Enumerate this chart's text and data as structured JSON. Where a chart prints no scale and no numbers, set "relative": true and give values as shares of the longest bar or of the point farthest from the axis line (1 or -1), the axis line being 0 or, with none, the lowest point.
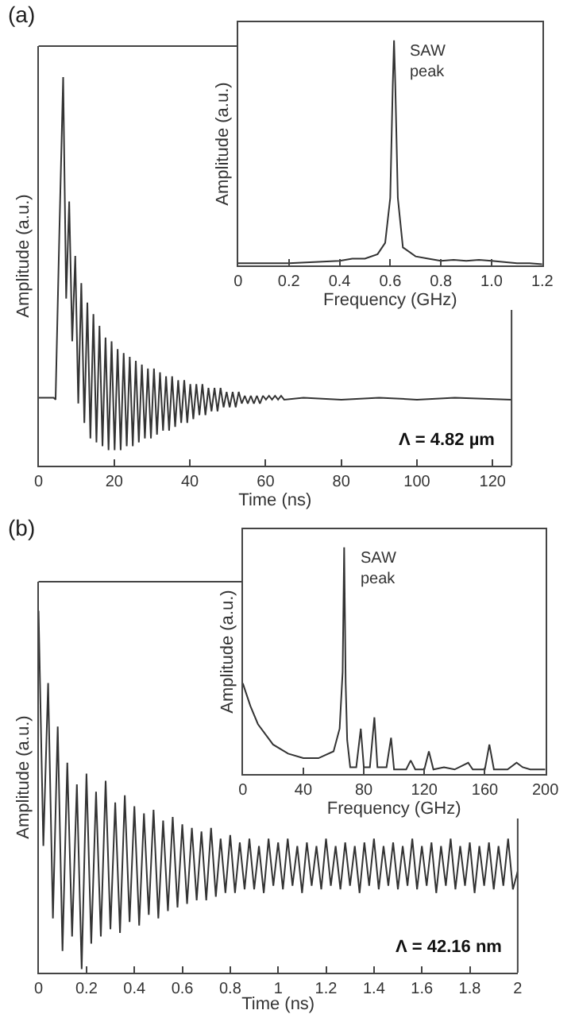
{
  "chart_data": [
    {
      "type": "line",
      "title": "(a)",
      "xlabel": "Time (ns)",
      "ylabel": "Amplitude (a.u.)",
      "relative": true,
      "xlim": [
        0,
        125
      ],
      "xticks": [
        0,
        20,
        40,
        60,
        80,
        100,
        120
      ],
      "marker": "none",
      "line_style": "solid",
      "annotations": [
        "Λ = 4.82 µm"
      ],
      "series": [
        {
          "color": "#333333",
          "x": [
            0,
            4,
            4.5,
            5.5,
            6.5,
            7.3,
            8.1,
            8.9,
            9.7,
            10.5,
            11.3,
            12.1,
            12.9,
            13.7,
            14.5,
            15.3,
            16.1,
            16.9,
            17.7,
            18.5,
            19.3,
            20.1,
            20.9,
            21.7,
            22.5,
            23.3,
            24.1,
            24.9,
            25.7,
            26.5,
            27.3,
            28.1,
            28.9,
            29.7,
            30.5,
            31.3,
            32.1,
            32.9,
            33.7,
            34.5,
            35.3,
            36.1,
            36.9,
            37.7,
            38.5,
            39.3,
            40.1,
            40.9,
            41.7,
            42.5,
            43.3,
            44.1,
            44.9,
            45.7,
            46.5,
            47.3,
            48.1,
            48.9,
            49.7,
            50.5,
            51.3,
            52.1,
            52.9,
            53.7,
            54.5,
            55.3,
            56.1,
            56.9,
            57.7,
            58.5,
            59.3,
            60.1,
            60.9,
            61.7,
            62.5,
            63.3,
            64.1,
            64.9,
            70,
            80,
            90,
            100,
            110,
            125
          ],
          "values": [
            0.175,
            0.175,
            0.17,
            0.6,
            1.0,
            0.43,
            0.68,
            0.32,
            0.54,
            0.16,
            0.47,
            0.11,
            0.42,
            0.07,
            0.39,
            0.06,
            0.36,
            0.05,
            0.33,
            0.04,
            0.32,
            0.04,
            0.3,
            0.04,
            0.29,
            0.05,
            0.28,
            0.05,
            0.27,
            0.06,
            0.26,
            0.07,
            0.25,
            0.07,
            0.25,
            0.08,
            0.24,
            0.09,
            0.23,
            0.09,
            0.23,
            0.1,
            0.22,
            0.11,
            0.22,
            0.11,
            0.21,
            0.12,
            0.21,
            0.13,
            0.21,
            0.13,
            0.2,
            0.14,
            0.2,
            0.14,
            0.2,
            0.15,
            0.19,
            0.15,
            0.19,
            0.15,
            0.19,
            0.16,
            0.18,
            0.16,
            0.18,
            0.16,
            0.18,
            0.16,
            0.18,
            0.17,
            0.18,
            0.17,
            0.18,
            0.17,
            0.18,
            0.17,
            0.175,
            0.17,
            0.175,
            0.17,
            0.175,
            0.17
          ]
        }
      ]
    },
    {
      "type": "line",
      "xlabel": "Frequency (GHz)",
      "ylabel": "Amplitude (a.u.)",
      "relative": true,
      "xlim": [
        0,
        1.2
      ],
      "xticks": [
        0,
        0.2,
        0.4,
        0.6,
        0.8,
        {
          "value": 1,
          "label": "1.0"
        },
        1.2
      ],
      "marker": "none",
      "line_style": "solid",
      "annotations": [
        {
          "text": "SAW\npeak",
          "x": 0.615,
          "y": 1.0
        }
      ],
      "series": [
        {
          "color": "#333333",
          "x": [
            0,
            0.1,
            0.2,
            0.3,
            0.4,
            0.45,
            0.5,
            0.55,
            0.58,
            0.6,
            0.61,
            0.615,
            0.62,
            0.63,
            0.65,
            0.7,
            0.75,
            0.8,
            0.85,
            0.9,
            0.95,
            1.0,
            1.05,
            1.1,
            1.15,
            1.2
          ],
          "values": [
            0.01,
            0.01,
            0.01,
            0.015,
            0.02,
            0.03,
            0.03,
            0.05,
            0.1,
            0.3,
            0.8,
            1.0,
            0.8,
            0.3,
            0.08,
            0.04,
            0.03,
            0.02,
            0.025,
            0.02,
            0.025,
            0.02,
            0.015,
            0.01,
            0.01,
            0.005
          ]
        }
      ]
    },
    {
      "type": "line",
      "title": "(b)",
      "xlabel": "Time (ns)",
      "ylabel": "Amplitude (a.u.)",
      "relative": true,
      "xlim": [
        0,
        2
      ],
      "xticks": [
        0,
        0.2,
        0.4,
        0.6,
        0.8,
        1,
        1.2,
        1.4,
        1.6,
        1.8,
        2
      ],
      "marker": "none",
      "line_style": "solid",
      "annotations": [
        "Λ = 42.16 nm"
      ],
      "series": [
        {
          "color": "#333333",
          "x": [
            0,
            0.02,
            0.04,
            0.06,
            0.08,
            0.1,
            0.12,
            0.14,
            0.16,
            0.18,
            0.2,
            0.22,
            0.24,
            0.26,
            0.28,
            0.3,
            0.32,
            0.34,
            0.36,
            0.38,
            0.4,
            0.42,
            0.44,
            0.46,
            0.48,
            0.5,
            0.52,
            0.54,
            0.56,
            0.58,
            0.6,
            0.62,
            0.64,
            0.66,
            0.68,
            0.7,
            0.72,
            0.74,
            0.76,
            0.78,
            0.8,
            0.82,
            0.84,
            0.86,
            0.88,
            0.9,
            0.92,
            0.94,
            0.96,
            0.98,
            1,
            1.02,
            1.04,
            1.06,
            1.08,
            1.1,
            1.12,
            1.14,
            1.16,
            1.18,
            1.2,
            1.22,
            1.24,
            1.26,
            1.28,
            1.3,
            1.32,
            1.34,
            1.36,
            1.38,
            1.4,
            1.42,
            1.44,
            1.46,
            1.48,
            1.5,
            1.52,
            1.54,
            1.56,
            1.58,
            1.6,
            1.62,
            1.64,
            1.66,
            1.68,
            1.7,
            1.72,
            1.74,
            1.76,
            1.78,
            1.8,
            1.82,
            1.84,
            1.86,
            1.88,
            1.9,
            1.92,
            1.94,
            1.96,
            1.98,
            2
          ],
          "values": [
            1.0,
            0.35,
            0.8,
            0.15,
            0.68,
            0.06,
            0.58,
            0.1,
            0.52,
            0.01,
            0.55,
            0.08,
            0.5,
            0.1,
            0.53,
            0.12,
            0.47,
            0.11,
            0.49,
            0.14,
            0.46,
            0.13,
            0.44,
            0.16,
            0.45,
            0.15,
            0.42,
            0.17,
            0.43,
            0.18,
            0.41,
            0.19,
            0.4,
            0.2,
            0.39,
            0.2,
            0.4,
            0.21,
            0.37,
            0.22,
            0.38,
            0.22,
            0.36,
            0.23,
            0.37,
            0.23,
            0.35,
            0.22,
            0.37,
            0.24,
            0.36,
            0.23,
            0.37,
            0.24,
            0.35,
            0.22,
            0.36,
            0.24,
            0.35,
            0.23,
            0.37,
            0.24,
            0.35,
            0.23,
            0.36,
            0.24,
            0.35,
            0.22,
            0.36,
            0.24,
            0.37,
            0.23,
            0.35,
            0.24,
            0.36,
            0.23,
            0.35,
            0.24,
            0.37,
            0.23,
            0.35,
            0.24,
            0.36,
            0.22,
            0.35,
            0.24,
            0.37,
            0.23,
            0.35,
            0.24,
            0.36,
            0.22,
            0.35,
            0.24,
            0.36,
            0.23,
            0.35,
            0.24,
            0.37,
            0.23,
            0.28
          ]
        }
      ]
    },
    {
      "type": "line",
      "xlabel": "Frequency (GHz)",
      "ylabel": "Amplitude (a.u.)",
      "relative": true,
      "xlim": [
        0,
        200
      ],
      "xticks": [
        0,
        40,
        80,
        120,
        160,
        200
      ],
      "marker": "none",
      "line_style": "solid",
      "annotations": [
        {
          "text": "SAW\npeak",
          "x": 67,
          "y": 1.0
        }
      ],
      "series": [
        {
          "color": "#333333",
          "x": [
            0,
            5,
            10,
            20,
            30,
            40,
            50,
            60,
            64,
            66,
            67,
            68,
            69,
            71,
            75,
            78,
            80,
            84,
            87,
            89,
            95,
            98,
            100,
            108,
            111,
            114,
            120,
            123,
            126,
            133,
            140,
            149,
            152,
            160,
            163,
            166,
            175,
            181,
            185,
            190,
            200
          ],
          "values": [
            0.4,
            0.3,
            0.22,
            0.13,
            0.09,
            0.07,
            0.07,
            0.1,
            0.2,
            0.45,
            1.0,
            0.4,
            0.15,
            0.03,
            0.03,
            0.2,
            0.03,
            0.03,
            0.25,
            0.03,
            0.03,
            0.16,
            0.02,
            0.02,
            0.06,
            0.02,
            0.02,
            0.1,
            0.02,
            0.03,
            0.02,
            0.05,
            0.02,
            0.02,
            0.13,
            0.02,
            0.02,
            0.05,
            0.03,
            0.02,
            0.02
          ]
        }
      ]
    }
  ]
}
